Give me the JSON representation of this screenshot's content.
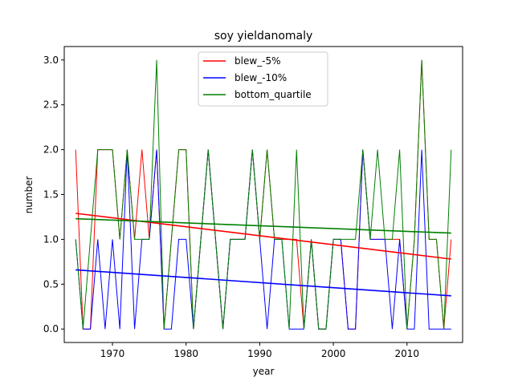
{
  "chart_data": {
    "type": "line",
    "title": "soy yieldanomaly",
    "xlabel": "year",
    "ylabel": "number",
    "xlim": [
      1963.45,
      2017.55
    ],
    "ylim": [
      -0.15,
      3.15
    ],
    "xticks": [
      1970,
      1980,
      1990,
      2000,
      2010
    ],
    "yticks": [
      0.0,
      0.5,
      1.0,
      1.5,
      2.0,
      2.5,
      3.0
    ],
    "ytick_labels": [
      "0.0",
      "0.5",
      "1.0",
      "1.5",
      "2.0",
      "2.5",
      "3.0"
    ],
    "legend_position": "upper center",
    "grid": false,
    "x": [
      1965,
      1966,
      1967,
      1968,
      1969,
      1970,
      1971,
      1972,
      1973,
      1974,
      1975,
      1976,
      1977,
      1978,
      1979,
      1980,
      1981,
      1982,
      1983,
      1984,
      1985,
      1986,
      1987,
      1988,
      1989,
      1990,
      1991,
      1992,
      1993,
      1994,
      1995,
      1996,
      1997,
      1998,
      1999,
      2000,
      2001,
      2002,
      2003,
      2004,
      2005,
      2006,
      2007,
      2008,
      2009,
      2010,
      2011,
      2012,
      2013,
      2014,
      2015,
      2016
    ],
    "series": [
      {
        "name": "blew_-5%",
        "color": "#ff0000",
        "values": [
          2,
          0,
          0,
          2,
          2,
          2,
          1,
          2,
          1,
          2,
          1,
          2,
          0,
          1,
          2,
          2,
          0,
          1,
          2,
          1,
          0,
          1,
          1,
          1,
          2,
          1,
          2,
          1,
          1,
          1,
          1,
          0,
          1,
          0,
          0,
          1,
          1,
          0,
          0,
          2,
          1,
          1,
          1,
          1,
          1,
          0,
          1,
          3,
          1,
          1,
          0,
          1
        ],
        "trend": [
          1.29,
          0.78
        ]
      },
      {
        "name": "blew_-10%",
        "color": "#0000ff",
        "values": [
          1,
          0,
          0,
          1,
          0,
          1,
          0,
          2,
          0,
          1,
          1,
          2,
          0,
          0,
          1,
          1,
          0,
          1,
          2,
          1,
          0,
          1,
          1,
          1,
          2,
          1,
          0,
          1,
          1,
          0,
          0,
          0,
          1,
          0,
          0,
          1,
          1,
          0,
          0,
          2,
          1,
          1,
          1,
          0,
          1,
          0,
          0,
          2,
          0,
          0,
          0,
          0
        ],
        "trend": [
          0.66,
          0.37
        ]
      },
      {
        "name": "bottom_quartile",
        "color": "#008000",
        "values": [
          1,
          0,
          1,
          2,
          2,
          2,
          1,
          2,
          1,
          1,
          1,
          3,
          0,
          1,
          2,
          2,
          0,
          1,
          2,
          1,
          0,
          1,
          1,
          1,
          2,
          1,
          2,
          1,
          1,
          0,
          2,
          0,
          1,
          0,
          0,
          1,
          1,
          1,
          1,
          2,
          1,
          2,
          1,
          1,
          2,
          0,
          1,
          3,
          1,
          1,
          0,
          2
        ],
        "trend": [
          1.23,
          1.07
        ]
      }
    ]
  }
}
